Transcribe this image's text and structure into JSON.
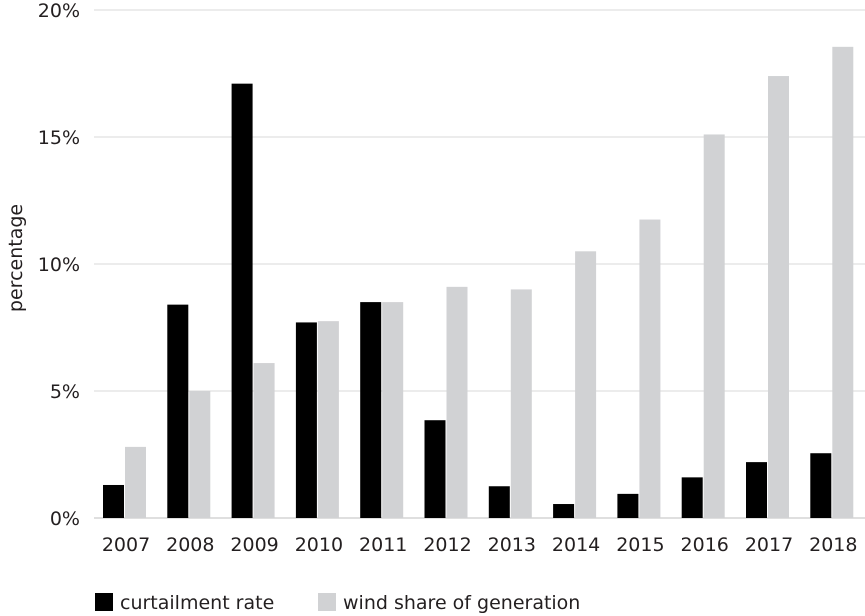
{
  "chart_data": {
    "type": "bar",
    "categories": [
      "2007",
      "2008",
      "2009",
      "2010",
      "2011",
      "2012",
      "2013",
      "2014",
      "2015",
      "2016",
      "2017",
      "2018"
    ],
    "series": [
      {
        "name": "curtailment rate",
        "color": "#000000",
        "values": [
          1.3,
          8.4,
          17.1,
          7.7,
          8.5,
          3.85,
          1.25,
          0.55,
          0.95,
          1.6,
          2.2,
          2.55
        ]
      },
      {
        "name": "wind share of generation",
        "color": "#d1d2d4",
        "values": [
          2.8,
          5.0,
          6.1,
          7.75,
          8.5,
          9.1,
          9.0,
          10.5,
          11.75,
          15.1,
          17.4,
          18.55
        ]
      }
    ],
    "ylabel": "percentage",
    "ylim": [
      0,
      20
    ],
    "yticks": [
      {
        "value": 0,
        "label": "0%"
      },
      {
        "value": 5,
        "label": "5%"
      },
      {
        "value": 10,
        "label": "10%"
      },
      {
        "value": 15,
        "label": "15%"
      },
      {
        "value": 20,
        "label": "20%"
      }
    ],
    "grid": true,
    "legend_position": "bottom-left"
  }
}
